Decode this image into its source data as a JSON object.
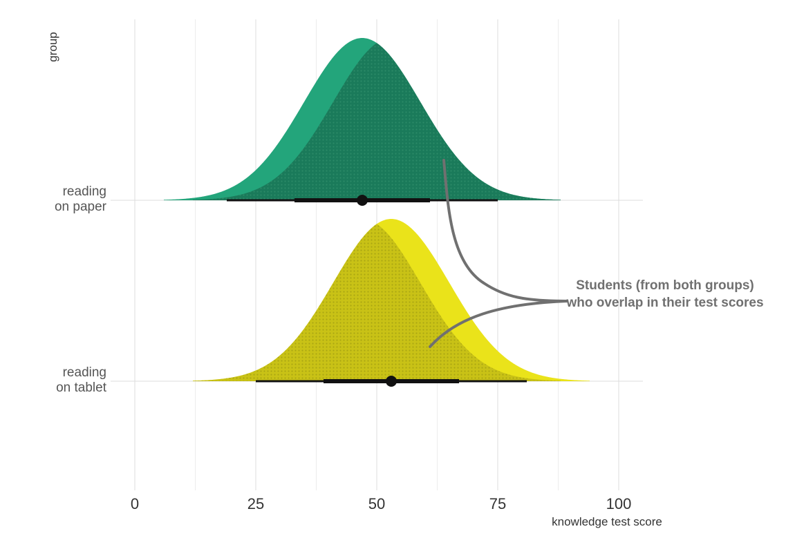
{
  "chart_data": {
    "type": "area",
    "xlabel": "knowledge test score",
    "ylabel": "group",
    "xlim": [
      0,
      105
    ],
    "x_ticks": [
      0,
      25,
      50,
      75,
      100
    ],
    "x_tick_labels": [
      "0",
      "25",
      "50",
      "75",
      "100"
    ],
    "grid": true,
    "groups": [
      {
        "label_lines": [
          "reading",
          "on paper"
        ],
        "color": "#23A57B",
        "overlap_color": "#1A7A5A",
        "mean": 47,
        "sd": 12,
        "range": [
          6,
          88
        ],
        "ci_inner": [
          33,
          61
        ],
        "ci_outer": [
          19,
          75
        ]
      },
      {
        "label_lines": [
          "reading",
          "on tablet"
        ],
        "color": "#EAE31A",
        "overlap_color": "#C9C216",
        "mean": 53,
        "sd": 12,
        "range": [
          12,
          94
        ],
        "ci_inner": [
          39,
          67
        ],
        "ci_outer": [
          25,
          81
        ]
      }
    ],
    "annotation": {
      "lines": [
        "Students (from both groups)",
        "who overlap in their test scores"
      ],
      "color": "#707070"
    }
  }
}
